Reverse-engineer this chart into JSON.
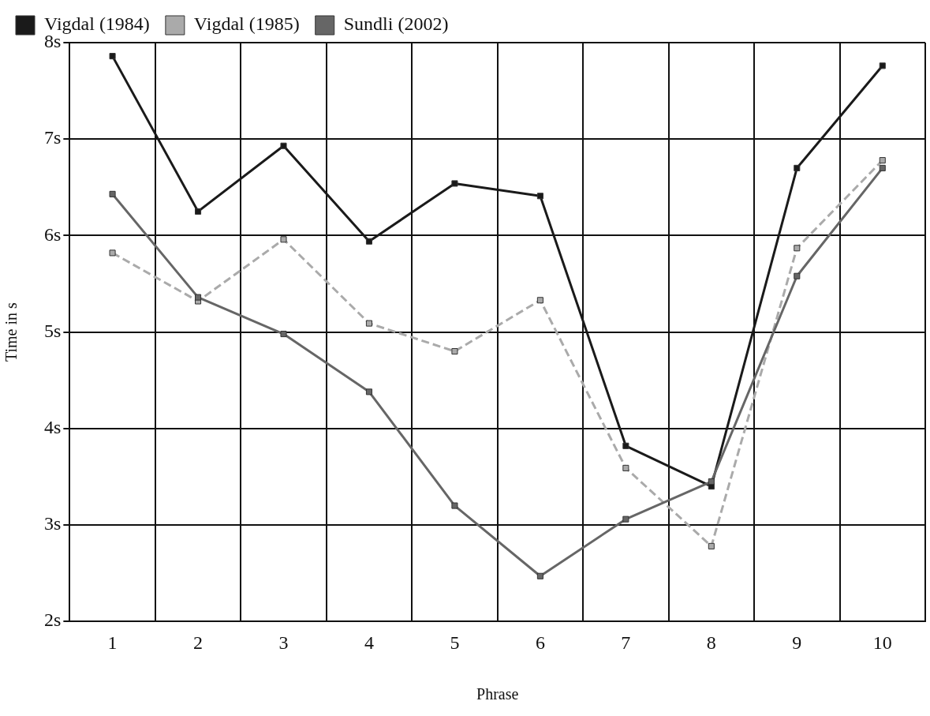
{
  "chart_data": {
    "type": "line",
    "xlabel": "Phrase",
    "ylabel": "Time in s",
    "categories": [
      "1",
      "2",
      "3",
      "4",
      "5",
      "6",
      "7",
      "8",
      "9",
      "10"
    ],
    "series": [
      {
        "name": "Vigdal (1984)",
        "color": "#1a1a1a",
        "line_style": "solid",
        "values": [
          7.86,
          6.25,
          6.93,
          5.94,
          6.54,
          6.41,
          3.82,
          3.4,
          6.7,
          7.76
        ]
      },
      {
        "name": "Vigdal (1985)",
        "color": "#aaaaaa",
        "line_style": "dashed",
        "values": [
          5.82,
          5.32,
          5.96,
          5.09,
          4.8,
          5.33,
          3.59,
          2.78,
          5.87,
          6.78
        ]
      },
      {
        "name": "Sundli (2002)",
        "color": "#666666",
        "line_style": "solid",
        "values": [
          6.43,
          5.36,
          4.98,
          4.38,
          3.2,
          2.47,
          3.06,
          3.45,
          5.58,
          6.7
        ]
      }
    ],
    "ylim": [
      2,
      8
    ],
    "yticks": [
      {
        "value": 2,
        "label": "2s"
      },
      {
        "value": 3,
        "label": "3s"
      },
      {
        "value": 4,
        "label": "4s"
      },
      {
        "value": 5,
        "label": "5s"
      },
      {
        "value": 6,
        "label": "6s"
      },
      {
        "value": 7,
        "label": "7s"
      },
      {
        "value": 8,
        "label": "8s"
      }
    ],
    "grid": true,
    "legend": "top left",
    "marker": "square"
  }
}
